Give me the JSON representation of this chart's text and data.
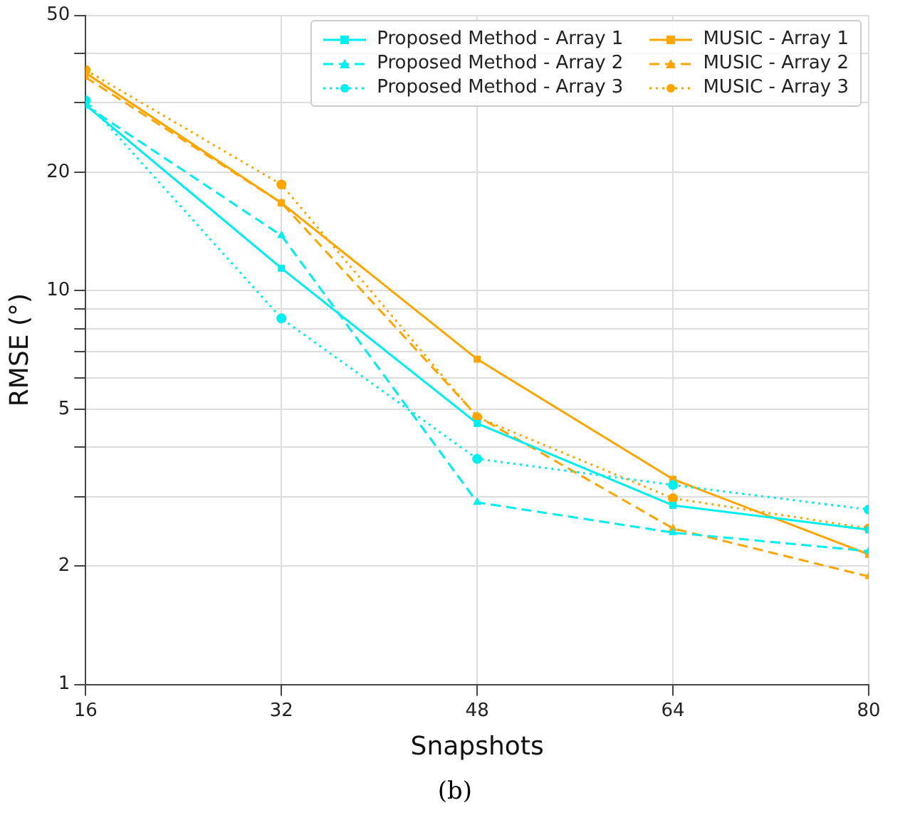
{
  "chart_data": {
    "type": "line",
    "xlabel": "Snapshots",
    "ylabel": "RMSE (°)",
    "log": "y",
    "grid": true,
    "legend": "top right",
    "x": [
      16,
      32,
      48,
      64,
      80
    ],
    "xlim": [
      16,
      80
    ],
    "xticks": [
      16,
      32,
      48,
      64,
      80
    ],
    "ylim": [
      1,
      50
    ],
    "yticks": [
      1,
      2,
      {
        "value": 3,
        "label": null
      },
      {
        "value": 4,
        "label": null
      },
      5,
      {
        "value": 6,
        "label": null
      },
      {
        "value": 7,
        "label": null
      },
      {
        "value": 8,
        "label": null
      },
      {
        "value": 9,
        "label": null
      },
      10,
      20,
      {
        "value": 30,
        "label": null
      },
      {
        "value": 40,
        "label": null
      },
      50
    ],
    "series": [
      {
        "name": "Proposed Method - Array 1",
        "color": "#00eeee",
        "line_style": "solid",
        "marker": "square",
        "values": [
          29.6,
          11.4,
          4.6,
          2.85,
          2.47
        ]
      },
      {
        "name": "Proposed Method - Array 2",
        "color": "#00eeee",
        "line_style": "dashed",
        "marker": "triangle",
        "values": [
          29.5,
          13.8,
          2.9,
          2.43,
          2.18
        ]
      },
      {
        "name": "Proposed Method - Array 3",
        "color": "#00eeee",
        "line_style": "dotted",
        "marker": "circle",
        "values": [
          30.4,
          8.5,
          3.74,
          3.21,
          2.78
        ]
      },
      {
        "name": "MUSIC - Array 1",
        "color": "#ffa500",
        "line_style": "solid",
        "marker": "square",
        "values": [
          35.7,
          16.7,
          6.7,
          3.32,
          2.14
        ]
      },
      {
        "name": "MUSIC - Array 2",
        "color": "#ffa500",
        "line_style": "dashed",
        "marker": "triangle",
        "values": [
          34.8,
          16.7,
          4.8,
          2.49,
          1.88
        ]
      },
      {
        "name": "MUSIC - Array 3",
        "color": "#ffa500",
        "line_style": "dotted",
        "marker": "circle",
        "values": [
          36.3,
          18.6,
          4.77,
          2.97,
          2.49
        ]
      }
    ],
    "annotations": [
      "(b)"
    ]
  }
}
